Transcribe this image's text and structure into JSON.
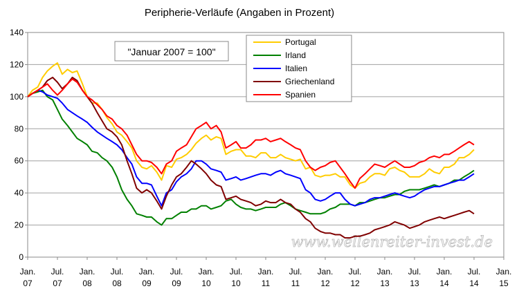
{
  "chart_data": {
    "type": "line",
    "title": "Peripherie-Verläufe (Angaben in Prozent)",
    "annotation": "\"Januar 2007 = 100\"",
    "watermark": "www.wellenreiter-invest.de",
    "xlabel": "",
    "ylabel": "",
    "ylim": [
      0,
      140
    ],
    "y_ticks": [
      0,
      20,
      40,
      60,
      80,
      100,
      120,
      140
    ],
    "x_range": [
      2007.0,
      2015.0
    ],
    "x_ticks": [
      {
        "x": 2007.0,
        "line1": "Jan.",
        "line2": "07"
      },
      {
        "x": 2007.5,
        "line1": "Jul.",
        "line2": "07"
      },
      {
        "x": 2008.0,
        "line1": "Jan.",
        "line2": "08"
      },
      {
        "x": 2008.5,
        "line1": "Jul.",
        "line2": "08"
      },
      {
        "x": 2009.0,
        "line1": "Jan.",
        "line2": "09"
      },
      {
        "x": 2009.5,
        "line1": "Jul.",
        "line2": "09"
      },
      {
        "x": 2010.0,
        "line1": "Jan.",
        "line2": "10"
      },
      {
        "x": 2010.5,
        "line1": "Jul.",
        "line2": "10"
      },
      {
        "x": 2011.0,
        "line1": "Jan.",
        "line2": "11"
      },
      {
        "x": 2011.5,
        "line1": "Jul.",
        "line2": "11"
      },
      {
        "x": 2012.0,
        "line1": "Jan.",
        "line2": "12"
      },
      {
        "x": 2012.5,
        "line1": "Jul.",
        "line2": "12"
      },
      {
        "x": 2013.0,
        "line1": "Jan.",
        "line2": "13"
      },
      {
        "x": 2013.5,
        "line1": "Jul.",
        "line2": "13"
      },
      {
        "x": 2014.0,
        "line1": "Jan.",
        "line2": "14"
      },
      {
        "x": 2014.5,
        "line1": "Jul.",
        "line2": "14"
      },
      {
        "x": 2015.0,
        "line1": "Jan.",
        "line2": "15"
      }
    ],
    "grid": "horizontal",
    "legend": "top-center",
    "series": [
      {
        "name": "Portugal",
        "color": "#ffcc00",
        "x": [
          2007.0,
          2007.08,
          2007.17,
          2007.25,
          2007.33,
          2007.42,
          2007.5,
          2007.58,
          2007.67,
          2007.75,
          2007.83,
          2007.92,
          2008.0,
          2008.08,
          2008.17,
          2008.25,
          2008.33,
          2008.42,
          2008.5,
          2008.58,
          2008.67,
          2008.75,
          2008.83,
          2008.92,
          2009.0,
          2009.08,
          2009.17,
          2009.25,
          2009.33,
          2009.42,
          2009.5,
          2009.58,
          2009.67,
          2009.75,
          2009.83,
          2009.92,
          2010.0,
          2010.08,
          2010.17,
          2010.25,
          2010.33,
          2010.42,
          2010.5,
          2010.58,
          2010.67,
          2010.75,
          2010.83,
          2010.92,
          2011.0,
          2011.08,
          2011.17,
          2011.25,
          2011.33,
          2011.42,
          2011.5,
          2011.58,
          2011.67,
          2011.75,
          2011.83,
          2011.92,
          2012.0,
          2012.08,
          2012.17,
          2012.25,
          2012.33,
          2012.42,
          2012.5,
          2012.58,
          2012.67,
          2012.75,
          2012.83,
          2012.92,
          2013.0,
          2013.08,
          2013.17,
          2013.25,
          2013.33,
          2013.42,
          2013.5,
          2013.58,
          2013.67,
          2013.75,
          2013.83,
          2013.92,
          2014.0,
          2014.08,
          2014.17,
          2014.25,
          2014.33,
          2014.42,
          2014.5
        ],
        "values": [
          100,
          104,
          106,
          112,
          116,
          119,
          121,
          114,
          117,
          115,
          116,
          108,
          100,
          96,
          96,
          92,
          87,
          83,
          78,
          76,
          72,
          68,
          60,
          56,
          55,
          57,
          53,
          48,
          57,
          56,
          61,
          62,
          64,
          67,
          71,
          74,
          76,
          73,
          75,
          74,
          64,
          66,
          67,
          67,
          63,
          63,
          62,
          65,
          65,
          62,
          62,
          64,
          62,
          61,
          60,
          61,
          55,
          56,
          51,
          50,
          51,
          51,
          52,
          50,
          50,
          45,
          43,
          46,
          47,
          50,
          52,
          52,
          51,
          55,
          56,
          54,
          53,
          50,
          50,
          50,
          52,
          55,
          53,
          52,
          56,
          56,
          58,
          62,
          62,
          64,
          67
        ]
      },
      {
        "name": "Irland",
        "color": "#008000",
        "x": [
          2007.0,
          2007.08,
          2007.17,
          2007.25,
          2007.33,
          2007.42,
          2007.5,
          2007.58,
          2007.67,
          2007.75,
          2007.83,
          2007.92,
          2008.0,
          2008.08,
          2008.17,
          2008.25,
          2008.33,
          2008.42,
          2008.5,
          2008.58,
          2008.67,
          2008.75,
          2008.83,
          2008.92,
          2009.0,
          2009.08,
          2009.17,
          2009.25,
          2009.33,
          2009.42,
          2009.5,
          2009.58,
          2009.67,
          2009.75,
          2009.83,
          2009.92,
          2010.0,
          2010.08,
          2010.17,
          2010.25,
          2010.33,
          2010.42,
          2010.5,
          2010.58,
          2010.67,
          2010.75,
          2010.83,
          2010.92,
          2011.0,
          2011.08,
          2011.17,
          2011.25,
          2011.33,
          2011.42,
          2011.5,
          2011.58,
          2011.67,
          2011.75,
          2011.83,
          2011.92,
          2012.0,
          2012.08,
          2012.17,
          2012.25,
          2012.33,
          2012.42,
          2012.5,
          2012.58,
          2012.67,
          2012.75,
          2012.83,
          2012.92,
          2013.0,
          2013.08,
          2013.17,
          2013.25,
          2013.33,
          2013.42,
          2013.5,
          2013.58,
          2013.67,
          2013.75,
          2013.83,
          2013.92,
          2014.0,
          2014.08,
          2014.17,
          2014.25,
          2014.33,
          2014.42,
          2014.5
        ],
        "values": [
          100,
          102,
          103,
          104,
          100,
          98,
          92,
          86,
          82,
          78,
          74,
          72,
          70,
          66,
          65,
          62,
          60,
          56,
          50,
          42,
          36,
          32,
          27,
          26,
          25,
          25,
          22,
          20,
          24,
          24,
          26,
          28,
          28,
          30,
          30,
          32,
          32,
          30,
          31,
          32,
          35,
          36,
          33,
          31,
          30,
          30,
          29,
          30,
          31,
          31,
          31,
          33,
          34,
          32,
          30,
          29,
          28,
          27,
          27,
          27,
          28,
          30,
          31,
          33,
          33,
          33,
          32,
          34,
          34,
          35,
          36,
          37,
          37,
          38,
          39,
          39,
          41,
          42,
          42,
          42,
          43,
          44,
          45,
          44,
          45,
          46,
          48,
          48,
          50,
          52,
          54
        ]
      },
      {
        "name": "Italien",
        "color": "#0000ff",
        "x": [
          2007.0,
          2007.08,
          2007.17,
          2007.25,
          2007.33,
          2007.42,
          2007.5,
          2007.58,
          2007.67,
          2007.75,
          2007.83,
          2007.92,
          2008.0,
          2008.08,
          2008.17,
          2008.25,
          2008.33,
          2008.42,
          2008.5,
          2008.58,
          2008.67,
          2008.75,
          2008.83,
          2008.92,
          2009.0,
          2009.08,
          2009.17,
          2009.25,
          2009.33,
          2009.42,
          2009.5,
          2009.58,
          2009.67,
          2009.75,
          2009.83,
          2009.92,
          2010.0,
          2010.08,
          2010.17,
          2010.25,
          2010.33,
          2010.42,
          2010.5,
          2010.58,
          2010.67,
          2010.75,
          2010.83,
          2010.92,
          2011.0,
          2011.08,
          2011.17,
          2011.25,
          2011.33,
          2011.42,
          2011.5,
          2011.58,
          2011.67,
          2011.75,
          2011.83,
          2011.92,
          2012.0,
          2012.08,
          2012.17,
          2012.25,
          2012.33,
          2012.42,
          2012.5,
          2012.58,
          2012.67,
          2012.75,
          2012.83,
          2012.92,
          2013.0,
          2013.08,
          2013.17,
          2013.25,
          2013.33,
          2013.42,
          2013.5,
          2013.58,
          2013.67,
          2013.75,
          2013.83,
          2013.92,
          2014.0,
          2014.08,
          2014.17,
          2014.25,
          2014.33,
          2014.42,
          2014.5
        ],
        "values": [
          100,
          102,
          104,
          103,
          101,
          100,
          99,
          96,
          92,
          90,
          88,
          86,
          84,
          81,
          78,
          76,
          74,
          72,
          70,
          67,
          62,
          58,
          50,
          46,
          46,
          45,
          38,
          32,
          40,
          42,
          47,
          50,
          52,
          55,
          60,
          60,
          58,
          55,
          54,
          53,
          48,
          49,
          50,
          48,
          49,
          50,
          51,
          52,
          52,
          51,
          53,
          54,
          52,
          51,
          50,
          49,
          42,
          40,
          36,
          35,
          36,
          38,
          40,
          40,
          36,
          33,
          32,
          33,
          34,
          36,
          37,
          37,
          38,
          39,
          40,
          39,
          38,
          37,
          38,
          40,
          42,
          43,
          44,
          44,
          45,
          46,
          47,
          48,
          48,
          50,
          52
        ]
      },
      {
        "name": "Griechenland",
        "color": "#800000",
        "x": [
          2007.0,
          2007.08,
          2007.17,
          2007.25,
          2007.33,
          2007.42,
          2007.5,
          2007.58,
          2007.67,
          2007.75,
          2007.83,
          2007.92,
          2008.0,
          2008.08,
          2008.17,
          2008.25,
          2008.33,
          2008.42,
          2008.5,
          2008.58,
          2008.67,
          2008.75,
          2008.83,
          2008.92,
          2009.0,
          2009.08,
          2009.17,
          2009.25,
          2009.33,
          2009.42,
          2009.5,
          2009.58,
          2009.67,
          2009.75,
          2009.83,
          2009.92,
          2010.0,
          2010.08,
          2010.17,
          2010.25,
          2010.33,
          2010.42,
          2010.5,
          2010.58,
          2010.67,
          2010.75,
          2010.83,
          2010.92,
          2011.0,
          2011.08,
          2011.17,
          2011.25,
          2011.33,
          2011.42,
          2011.5,
          2011.58,
          2011.67,
          2011.75,
          2011.83,
          2011.92,
          2012.0,
          2012.08,
          2012.17,
          2012.25,
          2012.33,
          2012.42,
          2012.5,
          2012.58,
          2012.67,
          2012.75,
          2012.83,
          2012.92,
          2013.0,
          2013.08,
          2013.17,
          2013.25,
          2013.33,
          2013.42,
          2013.5,
          2013.58,
          2013.67,
          2013.75,
          2013.83,
          2013.92,
          2014.0,
          2014.08,
          2014.17,
          2014.25,
          2014.33,
          2014.42,
          2014.5
        ],
        "values": [
          100,
          102,
          104,
          106,
          110,
          112,
          109,
          105,
          108,
          112,
          110,
          104,
          100,
          96,
          90,
          85,
          80,
          78,
          75,
          70,
          60,
          52,
          43,
          40,
          42,
          40,
          35,
          30,
          38,
          45,
          50,
          52,
          56,
          60,
          58,
          55,
          52,
          48,
          45,
          44,
          36,
          37,
          38,
          36,
          35,
          34,
          32,
          33,
          35,
          34,
          34,
          36,
          34,
          33,
          30,
          28,
          24,
          22,
          18,
          16,
          15,
          15,
          14,
          14,
          12,
          12,
          13,
          13,
          14,
          15,
          17,
          18,
          19,
          20,
          22,
          21,
          20,
          18,
          19,
          20,
          22,
          23,
          24,
          25,
          24,
          25,
          26,
          27,
          28,
          29,
          27
        ]
      },
      {
        "name": "Spanien",
        "color": "#ff0000",
        "x": [
          2007.0,
          2007.08,
          2007.17,
          2007.25,
          2007.33,
          2007.42,
          2007.5,
          2007.58,
          2007.67,
          2007.75,
          2007.83,
          2007.92,
          2008.0,
          2008.08,
          2008.17,
          2008.25,
          2008.33,
          2008.42,
          2008.5,
          2008.58,
          2008.67,
          2008.75,
          2008.83,
          2008.92,
          2009.0,
          2009.08,
          2009.17,
          2009.25,
          2009.33,
          2009.42,
          2009.5,
          2009.58,
          2009.67,
          2009.75,
          2009.83,
          2009.92,
          2010.0,
          2010.08,
          2010.17,
          2010.25,
          2010.33,
          2010.42,
          2010.5,
          2010.58,
          2010.67,
          2010.75,
          2010.83,
          2010.92,
          2011.0,
          2011.08,
          2011.17,
          2011.25,
          2011.33,
          2011.42,
          2011.5,
          2011.58,
          2011.67,
          2011.75,
          2011.83,
          2011.92,
          2012.0,
          2012.08,
          2012.17,
          2012.25,
          2012.33,
          2012.42,
          2012.5,
          2012.58,
          2012.67,
          2012.75,
          2012.83,
          2012.92,
          2013.0,
          2013.08,
          2013.17,
          2013.25,
          2013.33,
          2013.42,
          2013.5,
          2013.58,
          2013.67,
          2013.75,
          2013.83,
          2013.92,
          2014.0,
          2014.08,
          2014.17,
          2014.25,
          2014.33,
          2014.42,
          2014.5
        ],
        "values": [
          100,
          102,
          104,
          106,
          108,
          104,
          101,
          104,
          108,
          111,
          109,
          104,
          100,
          98,
          95,
          92,
          88,
          86,
          82,
          80,
          76,
          70,
          64,
          60,
          60,
          59,
          56,
          52,
          58,
          60,
          66,
          68,
          70,
          75,
          80,
          82,
          84,
          80,
          82,
          78,
          68,
          70,
          72,
          68,
          68,
          70,
          73,
          73,
          74,
          72,
          73,
          74,
          72,
          70,
          68,
          67,
          60,
          56,
          54,
          56,
          57,
          59,
          60,
          56,
          52,
          47,
          43,
          49,
          52,
          55,
          58,
          57,
          56,
          58,
          60,
          58,
          56,
          56,
          57,
          59,
          60,
          62,
          63,
          62,
          64,
          64,
          66,
          68,
          70,
          72,
          70
        ]
      }
    ]
  }
}
